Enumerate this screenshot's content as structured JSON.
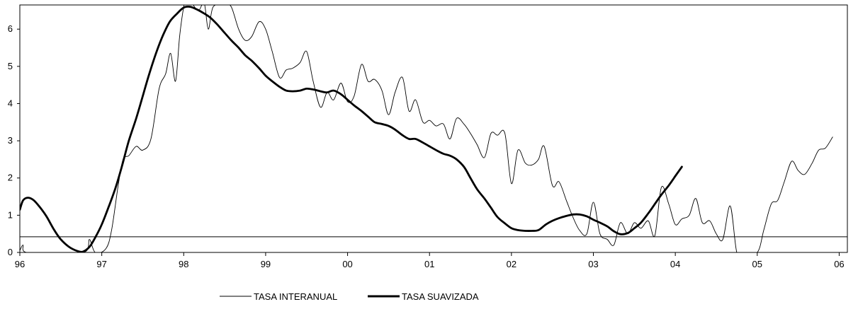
{
  "chart_data": {
    "type": "line",
    "title": "",
    "xlabel": "",
    "ylabel": "",
    "x_tick_labels": [
      "96",
      "97",
      "98",
      "99",
      "00",
      "01",
      "02",
      "03",
      "04",
      "05",
      "06"
    ],
    "x_range": [
      1996.0,
      2006.1
    ],
    "y_tick_labels": [
      "0",
      "1",
      "2",
      "3",
      "4",
      "5",
      "6"
    ],
    "ylim": [
      0,
      6.65
    ],
    "grid": false,
    "reference_line": {
      "y": 0.42,
      "color": "#000000"
    },
    "legend": {
      "position": "bottom-center"
    },
    "series": [
      {
        "name": "TASA INTERANUAL",
        "color": "#000000",
        "line_weight": "thin",
        "points": [
          [
            1996.0,
            0.05
          ],
          [
            1996.04,
            0.2
          ],
          [
            1996.08,
            0.0
          ],
          [
            1996.5,
            0.0
          ],
          [
            1996.8,
            0.02
          ],
          [
            1996.85,
            0.35
          ],
          [
            1996.92,
            0.0
          ],
          [
            1997.05,
            0.1
          ],
          [
            1997.12,
            0.6
          ],
          [
            1997.2,
            1.8
          ],
          [
            1997.26,
            2.5
          ],
          [
            1997.33,
            2.6
          ],
          [
            1997.42,
            2.85
          ],
          [
            1997.5,
            2.75
          ],
          [
            1997.6,
            3.05
          ],
          [
            1997.7,
            4.4
          ],
          [
            1997.78,
            4.8
          ],
          [
            1997.84,
            5.35
          ],
          [
            1997.9,
            4.6
          ],
          [
            1997.95,
            5.8
          ],
          [
            1998.0,
            6.6
          ],
          [
            1998.04,
            6.9
          ],
          [
            1998.1,
            6.7
          ],
          [
            1998.18,
            6.5
          ],
          [
            1998.25,
            6.7
          ],
          [
            1998.3,
            6.0
          ],
          [
            1998.36,
            6.6
          ],
          [
            1998.5,
            6.65
          ],
          [
            1998.58,
            6.6
          ],
          [
            1998.67,
            6.0
          ],
          [
            1998.75,
            5.7
          ],
          [
            1998.83,
            5.8
          ],
          [
            1998.92,
            6.2
          ],
          [
            1999.0,
            6.0
          ],
          [
            1999.08,
            5.4
          ],
          [
            1999.17,
            4.7
          ],
          [
            1999.25,
            4.9
          ],
          [
            1999.33,
            4.95
          ],
          [
            1999.42,
            5.1
          ],
          [
            1999.5,
            5.4
          ],
          [
            1999.58,
            4.6
          ],
          [
            1999.67,
            3.9
          ],
          [
            1999.75,
            4.3
          ],
          [
            1999.83,
            4.1
          ],
          [
            1999.92,
            4.55
          ],
          [
            2000.0,
            4.05
          ],
          [
            2000.08,
            4.2
          ],
          [
            2000.17,
            5.05
          ],
          [
            2000.25,
            4.6
          ],
          [
            2000.33,
            4.65
          ],
          [
            2000.42,
            4.35
          ],
          [
            2000.5,
            3.7
          ],
          [
            2000.58,
            4.3
          ],
          [
            2000.67,
            4.7
          ],
          [
            2000.75,
            3.8
          ],
          [
            2000.83,
            4.1
          ],
          [
            2000.92,
            3.5
          ],
          [
            2001.0,
            3.55
          ],
          [
            2001.08,
            3.4
          ],
          [
            2001.17,
            3.45
          ],
          [
            2001.25,
            3.05
          ],
          [
            2001.33,
            3.6
          ],
          [
            2001.42,
            3.45
          ],
          [
            2001.5,
            3.2
          ],
          [
            2001.58,
            2.9
          ],
          [
            2001.67,
            2.55
          ],
          [
            2001.75,
            3.2
          ],
          [
            2001.83,
            3.15
          ],
          [
            2001.92,
            3.2
          ],
          [
            2002.0,
            1.85
          ],
          [
            2002.08,
            2.75
          ],
          [
            2002.17,
            2.4
          ],
          [
            2002.25,
            2.35
          ],
          [
            2002.33,
            2.5
          ],
          [
            2002.4,
            2.85
          ],
          [
            2002.5,
            1.8
          ],
          [
            2002.58,
            1.9
          ],
          [
            2002.67,
            1.4
          ],
          [
            2002.75,
            0.95
          ],
          [
            2002.83,
            0.6
          ],
          [
            2002.92,
            0.5
          ],
          [
            2003.0,
            1.35
          ],
          [
            2003.08,
            0.5
          ],
          [
            2003.17,
            0.35
          ],
          [
            2003.25,
            0.2
          ],
          [
            2003.33,
            0.8
          ],
          [
            2003.42,
            0.5
          ],
          [
            2003.5,
            0.8
          ],
          [
            2003.58,
            0.65
          ],
          [
            2003.67,
            0.85
          ],
          [
            2003.75,
            0.45
          ],
          [
            2003.83,
            1.75
          ],
          [
            2003.92,
            1.3
          ],
          [
            2004.0,
            0.75
          ],
          [
            2004.08,
            0.9
          ],
          [
            2004.17,
            1.0
          ],
          [
            2004.25,
            1.45
          ],
          [
            2004.33,
            0.8
          ],
          [
            2004.42,
            0.85
          ],
          [
            2004.5,
            0.5
          ],
          [
            2004.58,
            0.35
          ],
          [
            2004.67,
            1.25
          ],
          [
            2004.75,
            0.0
          ],
          [
            2004.83,
            0.0
          ],
          [
            2005.0,
            0.0
          ],
          [
            2005.08,
            0.6
          ],
          [
            2005.17,
            1.3
          ],
          [
            2005.25,
            1.4
          ],
          [
            2005.33,
            1.9
          ],
          [
            2005.42,
            2.45
          ],
          [
            2005.5,
            2.2
          ],
          [
            2005.58,
            2.1
          ],
          [
            2005.67,
            2.4
          ],
          [
            2005.75,
            2.75
          ],
          [
            2005.83,
            2.8
          ],
          [
            2005.92,
            3.1
          ]
        ]
      },
      {
        "name": "TASA SUAVIZADA",
        "color": "#000000",
        "line_weight": "thick",
        "points": [
          [
            1996.0,
            1.15
          ],
          [
            1996.04,
            1.4
          ],
          [
            1996.1,
            1.47
          ],
          [
            1996.17,
            1.4
          ],
          [
            1996.25,
            1.2
          ],
          [
            1996.33,
            0.95
          ],
          [
            1996.42,
            0.6
          ],
          [
            1996.5,
            0.35
          ],
          [
            1996.6,
            0.15
          ],
          [
            1996.7,
            0.04
          ],
          [
            1996.77,
            0.02
          ],
          [
            1996.85,
            0.15
          ],
          [
            1996.92,
            0.4
          ],
          [
            1997.0,
            0.75
          ],
          [
            1997.08,
            1.2
          ],
          [
            1997.17,
            1.75
          ],
          [
            1997.25,
            2.35
          ],
          [
            1997.33,
            3.0
          ],
          [
            1997.42,
            3.6
          ],
          [
            1997.5,
            4.2
          ],
          [
            1997.58,
            4.8
          ],
          [
            1997.67,
            5.4
          ],
          [
            1997.75,
            5.85
          ],
          [
            1997.83,
            6.2
          ],
          [
            1997.92,
            6.42
          ],
          [
            1998.0,
            6.58
          ],
          [
            1998.08,
            6.6
          ],
          [
            1998.17,
            6.52
          ],
          [
            1998.25,
            6.42
          ],
          [
            1998.33,
            6.3
          ],
          [
            1998.42,
            6.1
          ],
          [
            1998.5,
            5.9
          ],
          [
            1998.58,
            5.7
          ],
          [
            1998.67,
            5.5
          ],
          [
            1998.75,
            5.3
          ],
          [
            1998.83,
            5.15
          ],
          [
            1998.92,
            4.95
          ],
          [
            1999.0,
            4.75
          ],
          [
            1999.08,
            4.6
          ],
          [
            1999.17,
            4.45
          ],
          [
            1999.25,
            4.35
          ],
          [
            1999.33,
            4.33
          ],
          [
            1999.42,
            4.35
          ],
          [
            1999.5,
            4.4
          ],
          [
            1999.58,
            4.38
          ],
          [
            1999.67,
            4.33
          ],
          [
            1999.75,
            4.3
          ],
          [
            1999.83,
            4.35
          ],
          [
            1999.92,
            4.25
          ],
          [
            2000.0,
            4.1
          ],
          [
            2000.08,
            3.95
          ],
          [
            2000.17,
            3.8
          ],
          [
            2000.25,
            3.65
          ],
          [
            2000.33,
            3.5
          ],
          [
            2000.42,
            3.45
          ],
          [
            2000.5,
            3.4
          ],
          [
            2000.58,
            3.3
          ],
          [
            2000.67,
            3.15
          ],
          [
            2000.75,
            3.05
          ],
          [
            2000.83,
            3.05
          ],
          [
            2000.92,
            2.95
          ],
          [
            2001.0,
            2.85
          ],
          [
            2001.08,
            2.75
          ],
          [
            2001.17,
            2.65
          ],
          [
            2001.25,
            2.6
          ],
          [
            2001.33,
            2.5
          ],
          [
            2001.42,
            2.3
          ],
          [
            2001.5,
            2.0
          ],
          [
            2001.58,
            1.7
          ],
          [
            2001.67,
            1.45
          ],
          [
            2001.75,
            1.2
          ],
          [
            2001.83,
            0.95
          ],
          [
            2001.92,
            0.78
          ],
          [
            2002.0,
            0.65
          ],
          [
            2002.08,
            0.6
          ],
          [
            2002.17,
            0.58
          ],
          [
            2002.25,
            0.58
          ],
          [
            2002.33,
            0.6
          ],
          [
            2002.42,
            0.75
          ],
          [
            2002.5,
            0.85
          ],
          [
            2002.58,
            0.92
          ],
          [
            2002.67,
            0.98
          ],
          [
            2002.75,
            1.02
          ],
          [
            2002.83,
            1.02
          ],
          [
            2002.92,
            0.97
          ],
          [
            2003.0,
            0.88
          ],
          [
            2003.08,
            0.8
          ],
          [
            2003.17,
            0.7
          ],
          [
            2003.25,
            0.57
          ],
          [
            2003.33,
            0.49
          ],
          [
            2003.42,
            0.52
          ],
          [
            2003.5,
            0.65
          ],
          [
            2003.58,
            0.8
          ],
          [
            2003.67,
            1.05
          ],
          [
            2003.75,
            1.3
          ],
          [
            2003.83,
            1.55
          ],
          [
            2003.92,
            1.8
          ],
          [
            2004.0,
            2.05
          ],
          [
            2004.08,
            2.3
          ]
        ]
      }
    ]
  }
}
